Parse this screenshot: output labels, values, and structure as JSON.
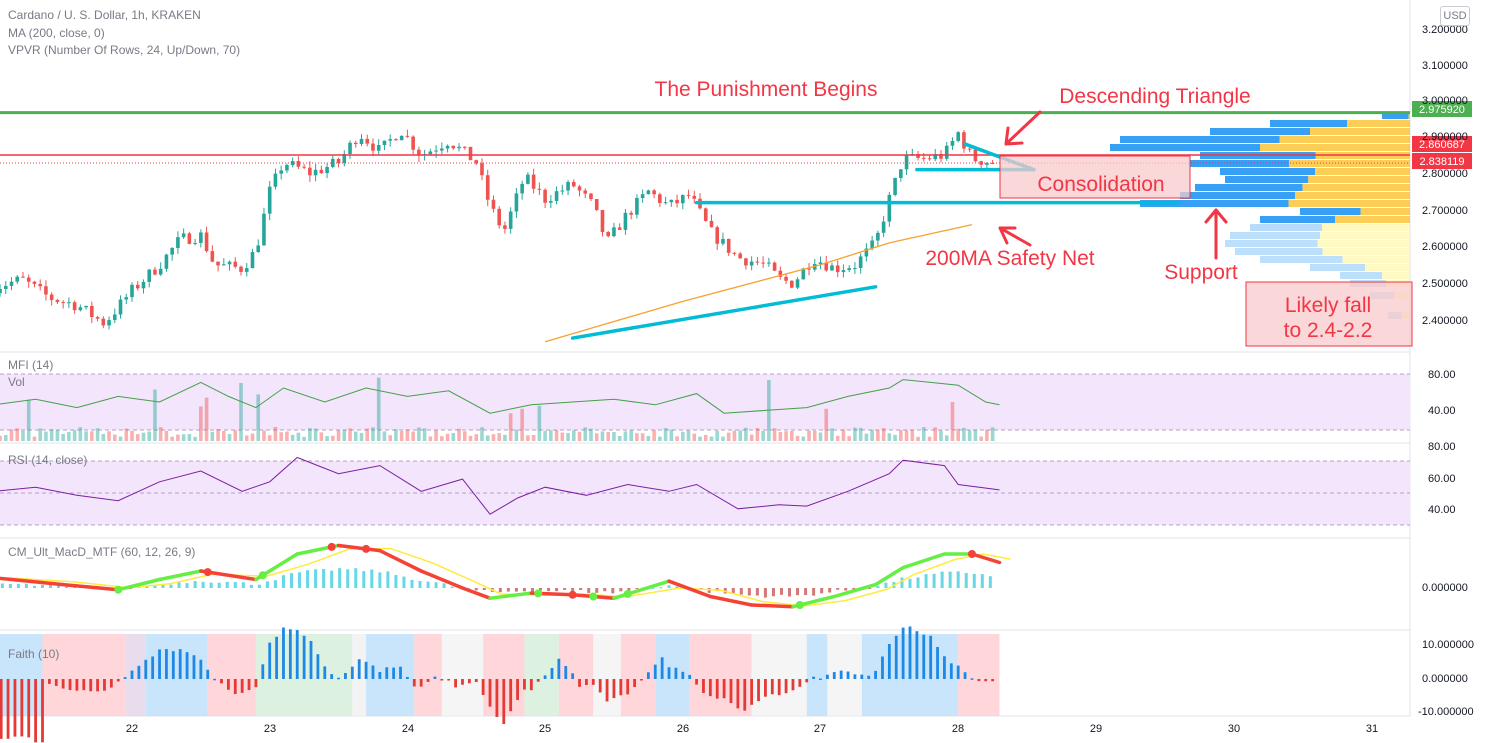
{
  "header": {
    "title": "Cardano / U. S. Dollar, 1h, KRAKEN",
    "ma_label": "MA (200, close, 0)",
    "vpvr_label": "VPVR (Number Of Rows, 24, Up/Down, 70)",
    "currency_badge": "USD"
  },
  "annotations": {
    "punishment": "The Punishment Begins",
    "descending_triangle": "Descending Triangle",
    "consolidation": "Consolidation",
    "safety_net": "200MA Safety Net",
    "support": "Support",
    "likely_fall_1": "Likely fall",
    "likely_fall_2": "to 2.4-2.2"
  },
  "panes": {
    "mfi_label": "MFI (14)",
    "vol_label": "Vol",
    "rsi_label": "RSI (14, close)",
    "macd_label": "CM_Ult_MacD_MTF (60, 12, 26, 9)",
    "faith_label": "Faith (10)"
  },
  "colors": {
    "up": "#26a69a",
    "down": "#ef5350",
    "resistance_green": "#4caf50",
    "price_red": "#f23645",
    "trendline": "#00bcd4",
    "ma": "#f7a130",
    "annotation_red": "#f23645",
    "pane_bg": "#f3e5fb"
  },
  "chart_data": [
    {
      "type": "candlestick",
      "title": "Cardano / U. S. Dollar, 1h, KRAKEN",
      "x_ticks": [
        "22",
        "23",
        "24",
        "25",
        "26",
        "27",
        "28",
        "29",
        "30",
        "31"
      ],
      "y_ticks": [
        "3.200000",
        "3.100000",
        "3.000000",
        "2.900000",
        "2.800000",
        "2.700000",
        "2.600000",
        "2.500000",
        "2.400000"
      ],
      "ylim": [
        2.32,
        3.24
      ],
      "price_labels": [
        "2.975920",
        "2.860687",
        "2.838119"
      ],
      "price_label_values": [
        2.97592,
        2.860687,
        2.838119
      ],
      "close_path": [
        [
          21.0,
          2.5
        ],
        [
          21.2,
          2.52
        ],
        [
          21.4,
          2.47
        ],
        [
          21.6,
          2.45
        ],
        [
          21.8,
          2.4
        ],
        [
          22.0,
          2.49
        ],
        [
          22.2,
          2.56
        ],
        [
          22.35,
          2.63
        ],
        [
          22.5,
          2.64
        ],
        [
          22.6,
          2.56
        ],
        [
          22.8,
          2.55
        ],
        [
          22.9,
          2.6
        ],
        [
          23.0,
          2.76
        ],
        [
          23.1,
          2.84
        ],
        [
          23.3,
          2.81
        ],
        [
          23.5,
          2.84
        ],
        [
          23.65,
          2.92
        ],
        [
          23.8,
          2.87
        ],
        [
          23.95,
          2.93
        ],
        [
          24.1,
          2.86
        ],
        [
          24.3,
          2.9
        ],
        [
          24.5,
          2.84
        ],
        [
          24.6,
          2.72
        ],
        [
          24.7,
          2.65
        ],
        [
          24.85,
          2.8
        ],
        [
          25.0,
          2.74
        ],
        [
          25.2,
          2.78
        ],
        [
          25.35,
          2.72
        ],
        [
          25.45,
          2.62
        ],
        [
          25.6,
          2.7
        ],
        [
          25.75,
          2.76
        ],
        [
          25.9,
          2.72
        ],
        [
          26.05,
          2.75
        ],
        [
          26.2,
          2.65
        ],
        [
          26.4,
          2.58
        ],
        [
          26.6,
          2.56
        ],
        [
          26.7,
          2.52
        ],
        [
          26.8,
          2.51
        ],
        [
          26.95,
          2.58
        ],
        [
          27.1,
          2.55
        ],
        [
          27.25,
          2.56
        ],
        [
          27.4,
          2.62
        ],
        [
          27.5,
          2.74
        ],
        [
          27.6,
          2.85
        ],
        [
          27.75,
          2.85
        ],
        [
          27.9,
          2.86
        ],
        [
          28.0,
          2.92
        ],
        [
          28.1,
          2.85
        ],
        [
          28.25,
          2.84
        ]
      ],
      "series": [
        {
          "name": "MA (200, close, 0)",
          "x": [
            25.0,
            26.0,
            27.0,
            27.5,
            28.1
          ],
          "values": [
            2.35,
            2.46,
            2.56,
            2.62,
            2.67
          ]
        }
      ],
      "horizontal_levels": [
        2.97592,
        2.86
      ],
      "trendlines": [
        {
          "x": [
            25.2,
            27.4
          ],
          "values": [
            2.36,
            2.5
          ]
        },
        {
          "x": [
            26.1,
            29.6
          ],
          "values": [
            2.73,
            2.73
          ]
        },
        {
          "x": [
            27.7,
            28.55
          ],
          "values": [
            2.82,
            2.82
          ]
        },
        {
          "x": [
            28.05,
            28.55
          ],
          "values": [
            2.89,
            2.82
          ]
        }
      ]
    },
    {
      "type": "volume_profile",
      "title": "VPVR (Number Of Rows, 24, Up/Down, 70)",
      "rows": 24
    },
    {
      "type": "line",
      "title": "MFI (14)",
      "y_ticks": [
        "80.00",
        "40.00"
      ],
      "ylim": [
        0,
        100
      ],
      "x": [
        21.0,
        21.3,
        21.6,
        21.9,
        22.2,
        22.5,
        22.7,
        22.9,
        23.1,
        23.4,
        23.7,
        24.0,
        24.3,
        24.6,
        24.9,
        25.2,
        25.5,
        25.8,
        26.1,
        26.3,
        26.6,
        26.9,
        27.2,
        27.5,
        27.6,
        27.8,
        28.0,
        28.2,
        28.3
      ],
      "values": [
        45,
        55,
        40,
        60,
        50,
        85,
        60,
        40,
        75,
        50,
        75,
        60,
        70,
        30,
        45,
        50,
        55,
        45,
        65,
        30,
        35,
        40,
        60,
        75,
        90,
        85,
        80,
        50,
        45
      ]
    },
    {
      "type": "bar",
      "title": "Vol"
    },
    {
      "type": "line",
      "title": "RSI (14, close)",
      "y_ticks": [
        "80.00",
        "60.00",
        "40.00"
      ],
      "ylim": [
        30,
        85
      ],
      "x": [
        21.0,
        21.3,
        21.6,
        21.9,
        22.2,
        22.5,
        22.8,
        23.0,
        23.2,
        23.5,
        23.8,
        24.1,
        24.4,
        24.6,
        24.8,
        25.0,
        25.3,
        25.6,
        25.9,
        26.1,
        26.4,
        26.7,
        26.9,
        27.2,
        27.5,
        27.6,
        27.9,
        28.0,
        28.3
      ],
      "values": [
        55,
        58,
        52,
        48,
        62,
        70,
        55,
        62,
        80,
        68,
        74,
        55,
        64,
        38,
        50,
        58,
        52,
        60,
        55,
        60,
        42,
        45,
        44,
        55,
        68,
        78,
        74,
        60,
        56
      ]
    },
    {
      "type": "line",
      "title": "CM_Ult_MacD_MTF (60, 12, 26, 9)",
      "y_ticks": [
        "0.000000"
      ],
      "x": [
        21.0,
        21.5,
        21.9,
        22.2,
        22.5,
        22.9,
        23.2,
        23.5,
        23.8,
        24.1,
        24.4,
        24.6,
        24.9,
        25.2,
        25.5,
        25.9,
        26.2,
        26.5,
        26.8,
        27.1,
        27.4,
        27.6,
        27.9,
        28.1,
        28.3
      ],
      "values": [
        0.006,
        0.002,
        -0.001,
        0.005,
        0.01,
        0.005,
        0.02,
        0.025,
        0.022,
        0.01,
        0.0,
        -0.006,
        -0.003,
        -0.004,
        -0.006,
        0.004,
        -0.005,
        -0.01,
        -0.011,
        -0.005,
        0.002,
        0.012,
        0.02,
        0.02,
        0.015
      ]
    },
    {
      "type": "bar",
      "title": "Faith (10)",
      "y_ticks": [
        "10.000000",
        "0.000000",
        "-10.000000"
      ]
    }
  ]
}
